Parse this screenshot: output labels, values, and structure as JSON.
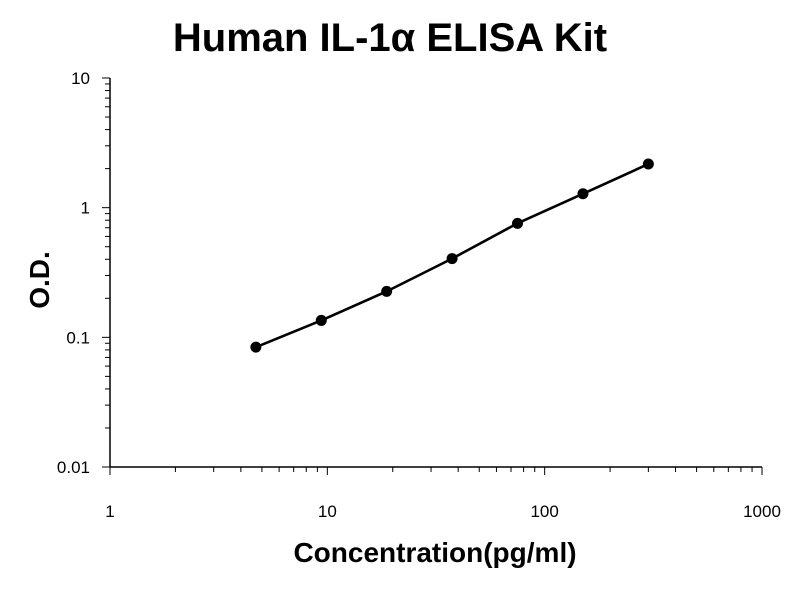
{
  "chart_data": {
    "type": "line",
    "title": "Human IL-1α ELISA Kit",
    "xlabel": "Concentration(pg/ml)",
    "ylabel": "O.D.",
    "x_scale": "log",
    "y_scale": "log",
    "xlim": [
      1,
      1000
    ],
    "ylim": [
      0.01,
      10
    ],
    "x_tick_labels": [
      "1",
      "10",
      "100",
      "1000"
    ],
    "y_tick_labels": [
      "0.01",
      "0.1",
      "1",
      "10"
    ],
    "grid": false,
    "legend": "none",
    "series": [
      {
        "points": [
          {
            "x": 4.69,
            "y": 0.084
          },
          {
            "x": 9.38,
            "y": 0.135
          },
          {
            "x": 18.75,
            "y": 0.226
          },
          {
            "x": 37.5,
            "y": 0.405
          },
          {
            "x": 75,
            "y": 0.757
          },
          {
            "x": 150,
            "y": 1.28
          },
          {
            "x": 300,
            "y": 2.17
          }
        ],
        "color": "#000000"
      }
    ]
  }
}
